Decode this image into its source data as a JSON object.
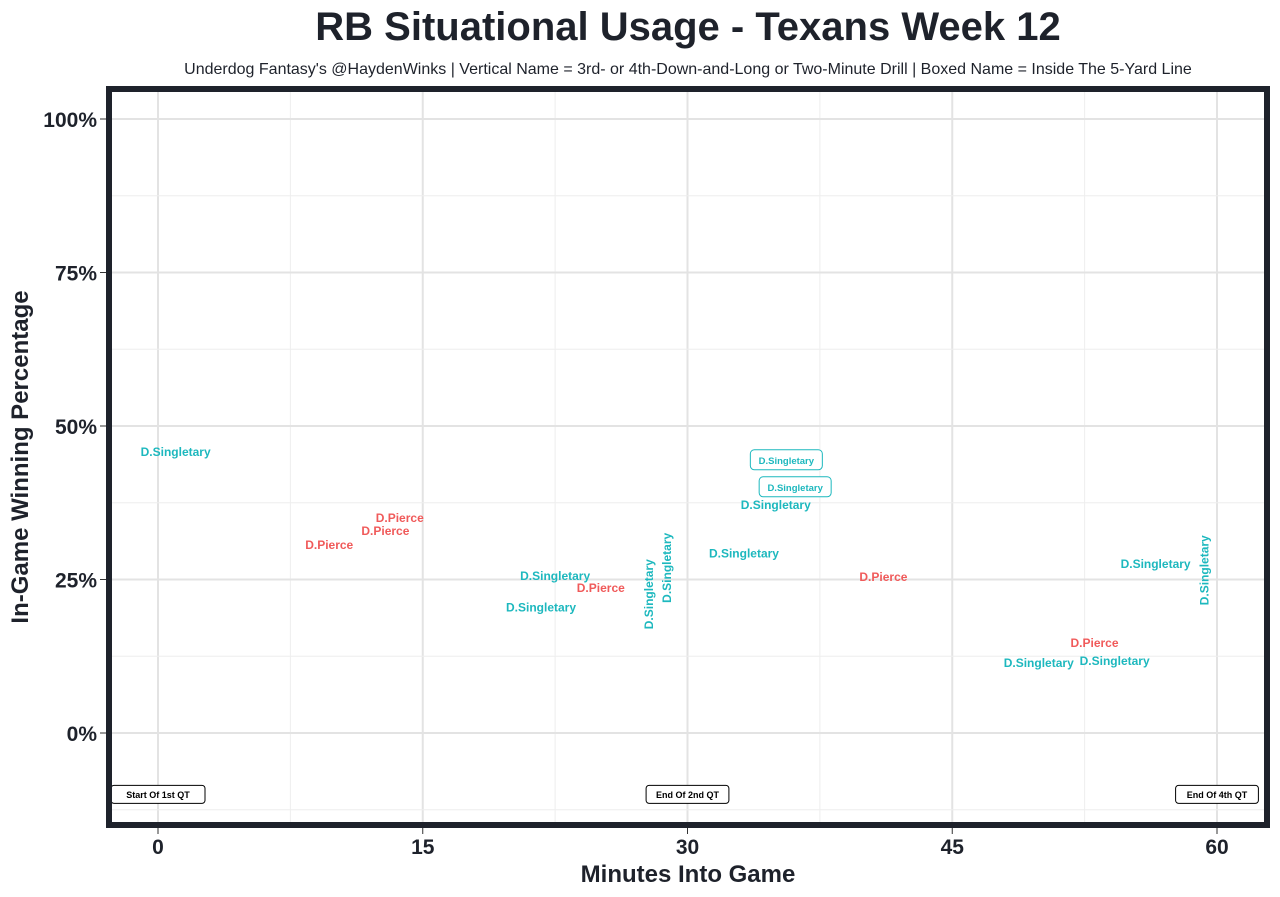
{
  "chart_data": {
    "type": "scatter",
    "title": "RB Situational Usage - Texans Week 12",
    "subtitle": "Underdog Fantasy's @HaydenWinks | Vertical Name = 3rd- or 4th-Down-and-Long or Two-Minute Drill | Boxed Name = Inside The 5-Yard Line",
    "xlabel": "Minutes Into Game",
    "ylabel": "In-Game Winning Percentage",
    "xlim": [
      -2.8,
      62.9
    ],
    "ylim": [
      -15,
      105
    ],
    "x_ticks": [
      0,
      15,
      30,
      45,
      60
    ],
    "x_tick_labels": [
      "0",
      "15",
      "30",
      "45",
      "60"
    ],
    "y_ticks": [
      0,
      25,
      50,
      75,
      100
    ],
    "y_tick_labels": [
      "0%",
      "25%",
      "50%",
      "75%",
      "100%"
    ],
    "grid": true,
    "colors": {
      "D.Singletary": "#1db8be",
      "D.Pierce": "#f05a5a",
      "frame": "#1e222b"
    },
    "points": [
      {
        "player": "D.Singletary",
        "x": 1.0,
        "y": 45.8,
        "style": "normal"
      },
      {
        "player": "D.Pierce",
        "x": 11.4,
        "y": 32.6,
        "style": "normal"
      },
      {
        "player": "D.Pierce",
        "x": 12.6,
        "y": 32.9,
        "style": "normal"
      },
      {
        "player": "D.Pierce",
        "x": 13.3,
        "y": 34.0,
        "style": "normal"
      },
      {
        "player": "D.Singletary",
        "x": 22.5,
        "y": 25.6,
        "style": "normal"
      },
      {
        "player": "D.Singletary",
        "x": 21.7,
        "y": 20.4,
        "style": "normal"
      },
      {
        "player": "D.Pierce",
        "x": 26.9,
        "y": 23.6,
        "style": "normal"
      },
      {
        "player": "D.Singletary",
        "x": 28.0,
        "y": 22.6,
        "style": "vertical"
      },
      {
        "player": "D.Singletary",
        "x": 28.5,
        "y": 26.9,
        "style": "vertical"
      },
      {
        "player": "D.Singletary",
        "x": 33.2,
        "y": 29.2,
        "style": "normal"
      },
      {
        "player": "D.Singletary",
        "x": 35.6,
        "y": 44.5,
        "style": "boxed"
      },
      {
        "player": "D.Singletary",
        "x": 36.1,
        "y": 40.1,
        "style": "boxed"
      },
      {
        "player": "D.Singletary",
        "x": 35.0,
        "y": 37.1,
        "style": "normal"
      },
      {
        "player": "D.Pierce",
        "x": 41.1,
        "y": 25.4,
        "style": "normal"
      },
      {
        "player": "D.Singletary",
        "x": 49.9,
        "y": 11.4,
        "style": "normal"
      },
      {
        "player": "D.Pierce",
        "x": 53.4,
        "y": 12.4,
        "style": "normal"
      },
      {
        "player": "D.Singletary",
        "x": 54.2,
        "y": 11.7,
        "style": "normal"
      },
      {
        "player": "D.Singletary",
        "x": 57.2,
        "y": 27.5,
        "style": "normal"
      },
      {
        "player": "D.Singletary",
        "x": 59.3,
        "y": 26.5,
        "style": "vertical"
      }
    ],
    "annotations": [
      {
        "text": "Start Of 1st QT",
        "x": 0,
        "y": -10
      },
      {
        "text": "End Of 2nd QT",
        "x": 30,
        "y": -10
      },
      {
        "text": "End Of 4th QT",
        "x": 60,
        "y": -10
      }
    ]
  }
}
